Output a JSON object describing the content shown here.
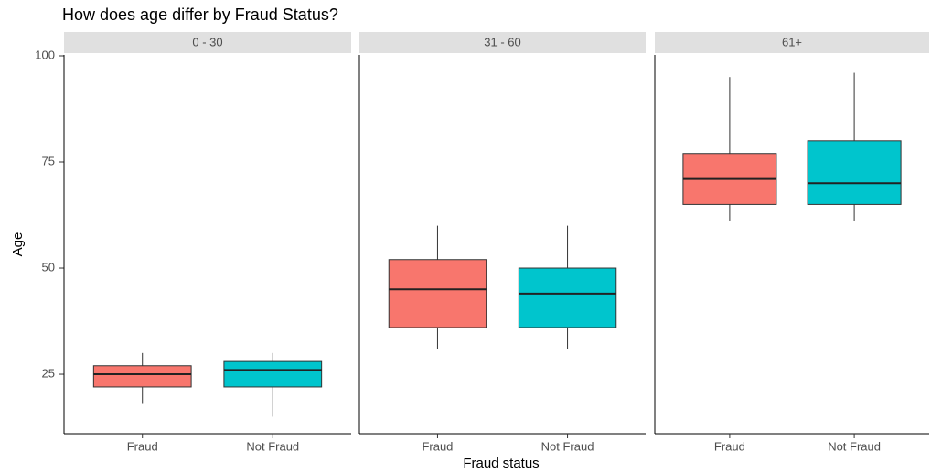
{
  "chart_data": {
    "type": "box",
    "title": "How does age differ by Fraud Status?",
    "x_label": "Fraud status",
    "y_label": "Age",
    "ylim": [
      11,
      100
    ],
    "yticks": [
      25,
      50,
      75,
      100
    ],
    "colors": [
      "#F8766D",
      "#00C5CD"
    ],
    "facets": [
      {
        "title": "0 - 30",
        "categories": [
          "Fraud",
          "Not Fraud"
        ],
        "boxes": [
          {
            "min": 18,
            "q1": 22,
            "median": 25,
            "q3": 27,
            "max": 30
          },
          {
            "min": 15,
            "q1": 22,
            "median": 26,
            "q3": 28,
            "max": 30
          }
        ]
      },
      {
        "title": "31 - 60",
        "categories": [
          "Fraud",
          "Not Fraud"
        ],
        "boxes": [
          {
            "min": 31,
            "q1": 36,
            "median": 45,
            "q3": 52,
            "max": 60
          },
          {
            "min": 31,
            "q1": 36,
            "median": 44,
            "q3": 50,
            "max": 60
          }
        ]
      },
      {
        "title": "61+",
        "categories": [
          "Fraud",
          "Not Fraud"
        ],
        "boxes": [
          {
            "min": 61,
            "q1": 65,
            "median": 71,
            "q3": 77,
            "max": 95
          },
          {
            "min": 61,
            "q1": 65,
            "median": 70,
            "q3": 80,
            "max": 96
          }
        ]
      }
    ]
  }
}
